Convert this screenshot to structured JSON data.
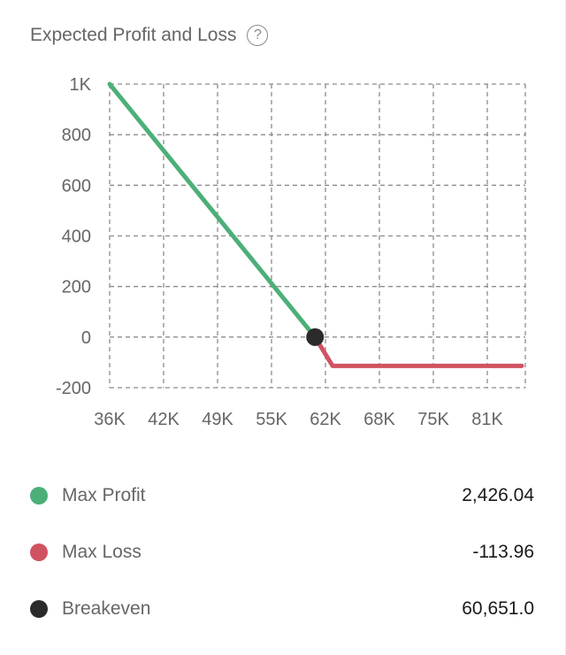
{
  "header": {
    "title": "Expected Profit and Loss",
    "help_glyph": "?"
  },
  "chart_data": {
    "type": "line",
    "title": "Expected Profit and Loss",
    "xlabel": "",
    "ylabel": "",
    "x_tick_labels": [
      "36K",
      "42K",
      "49K",
      "55K",
      "62K",
      "68K",
      "75K",
      "81K"
    ],
    "x_ticks": [
      36000,
      42000,
      49000,
      55000,
      62000,
      68000,
      75000,
      81000
    ],
    "y_tick_labels": [
      "1K",
      "800",
      "600",
      "400",
      "200",
      "0",
      "-200"
    ],
    "y_ticks": [
      1000,
      800,
      600,
      400,
      200,
      0,
      -200
    ],
    "xlim": [
      36000,
      86000
    ],
    "ylim": [
      -200,
      1000
    ],
    "grid": true,
    "series": [
      {
        "color": "#4caf78",
        "x": [
          36000,
          60651
        ],
        "y": [
          1000,
          0
        ]
      },
      {
        "color": "#d05361",
        "x": [
          60651,
          62800,
          86000
        ],
        "y": [
          0,
          -113.96,
          -113.96
        ]
      }
    ],
    "breakeven_point": {
      "x": 60651,
      "y": 0,
      "color": "#2b2b2b"
    }
  },
  "legend": [
    {
      "label": "Max Profit",
      "value": "2,426.04",
      "color": "#4caf78"
    },
    {
      "label": "Max Loss",
      "value": "-113.96",
      "color": "#d05361"
    },
    {
      "label": "Breakeven",
      "value": "60,651.0",
      "color": "#2b2b2b"
    }
  ]
}
